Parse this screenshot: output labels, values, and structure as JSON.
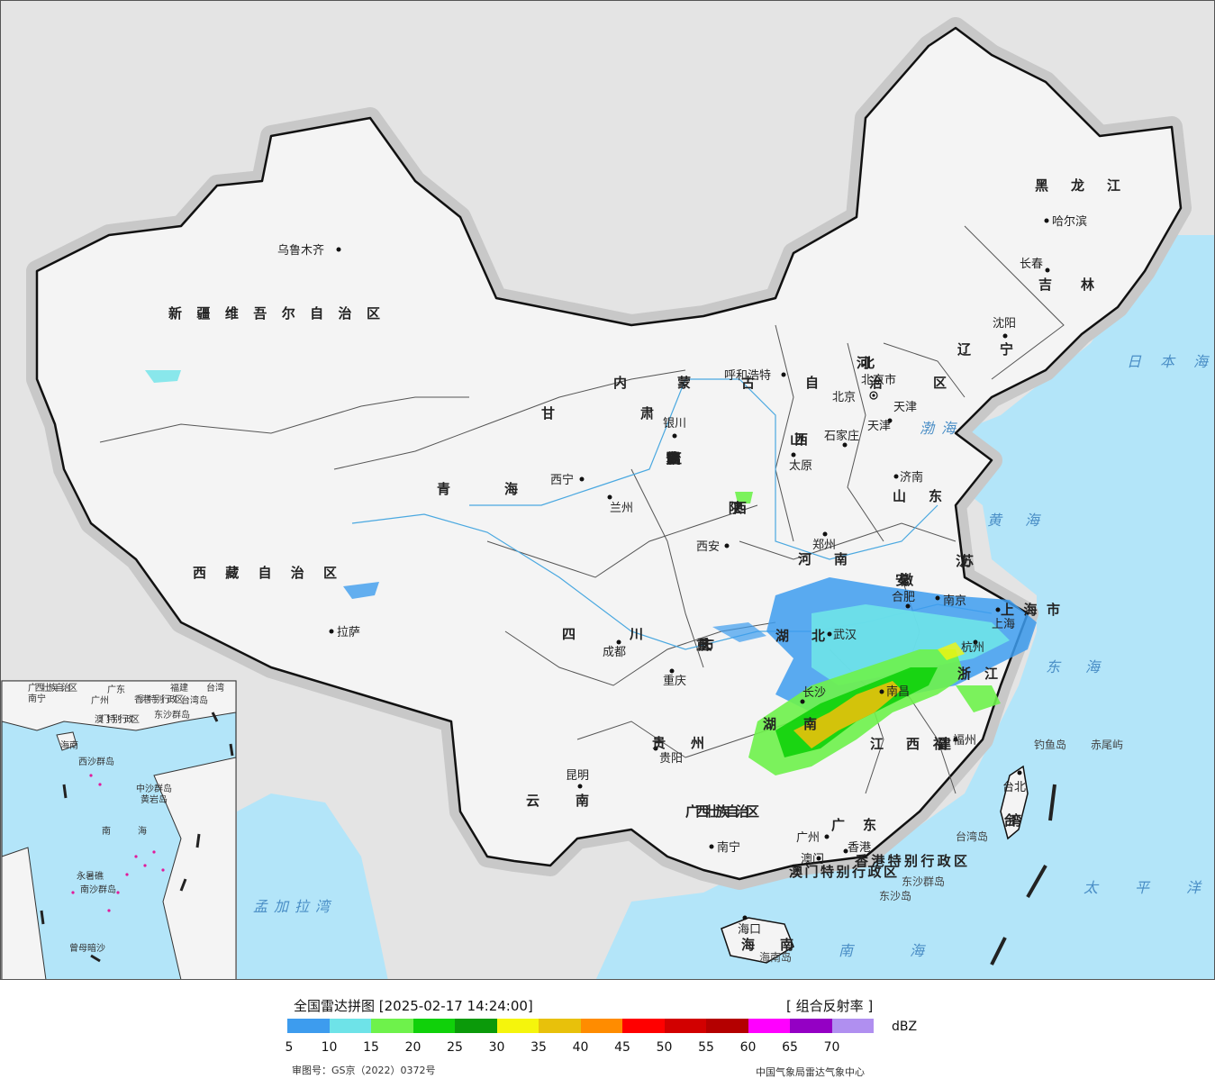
{
  "map": {
    "provinces": [
      "新疆维吾尔自治区",
      "西藏自治区",
      "青海",
      "甘肃",
      "内蒙古自治区",
      "黑龙江",
      "吉林",
      "辽宁",
      "河北",
      "山西",
      "山东",
      "河南",
      "陕西",
      "四川",
      "重庆市",
      "湖北",
      "湖南",
      "江西",
      "安徽",
      "江苏",
      "浙江",
      "福建",
      "广东",
      "广西壮族自治区",
      "贵州",
      "云南",
      "海南",
      "台湾",
      "宁夏回族自治区",
      "北京市",
      "天津",
      "上海市",
      "香港特别行政区",
      "澳门特别行政区"
    ],
    "cities": [
      "乌鲁木齐",
      "拉萨",
      "西宁",
      "兰州",
      "银川",
      "呼和浩特",
      "北京",
      "天津",
      "石家庄",
      "太原",
      "济南",
      "郑州",
      "西安",
      "成都",
      "重庆",
      "武汉",
      "长沙",
      "南昌",
      "合肥",
      "南京",
      "上海",
      "杭州",
      "福州",
      "贵阳",
      "昆明",
      "南宁",
      "广州",
      "香港",
      "澳门",
      "海口",
      "台北",
      "沈阳",
      "长春",
      "哈尔滨"
    ],
    "seas": [
      "日本海",
      "渤海",
      "黄海",
      "东海",
      "太平洋",
      "南海",
      "孟加拉湾"
    ],
    "islands": [
      "钓鱼岛",
      "赤尾屿",
      "台湾岛",
      "东沙群岛",
      "东沙岛",
      "海南岛"
    ],
    "inset": {
      "labels": [
        "广西壮族自治区",
        "南宁",
        "广东",
        "广州",
        "福建",
        "台湾",
        "香港特别行政区",
        "澳门特别行政区",
        "海南",
        "西沙群岛",
        "东沙群岛",
        "中沙群岛",
        "黄岩岛",
        "南海",
        "南沙群岛",
        "永暑礁",
        "曾母暗沙",
        "台湾岛"
      ]
    },
    "colors": {
      "land": "#f3f3f3",
      "sea": "#b3e5f9",
      "outside": "#e4e4e4",
      "border": "#111111"
    }
  },
  "legend": {
    "title": "全国雷达拼图 [2025-02-17 14:24:00]",
    "product": "[ 组合反射率 ]",
    "unit": "dBZ",
    "colors": [
      "#3d9cee",
      "#6ee3e8",
      "#6ef24b",
      "#10d10a",
      "#0b9a0a",
      "#f5f50c",
      "#e8c10b",
      "#ff8c00",
      "#ff0000",
      "#d20000",
      "#b40000",
      "#ff00ff",
      "#9400c4",
      "#b08ff0"
    ],
    "ticks": [
      "5",
      "10",
      "15",
      "20",
      "25",
      "30",
      "35",
      "40",
      "45",
      "50",
      "55",
      "60",
      "65",
      "70"
    ],
    "review_number": "审图号：GS京（2022）0372号",
    "producer": "中国气象局雷达气象中心"
  }
}
